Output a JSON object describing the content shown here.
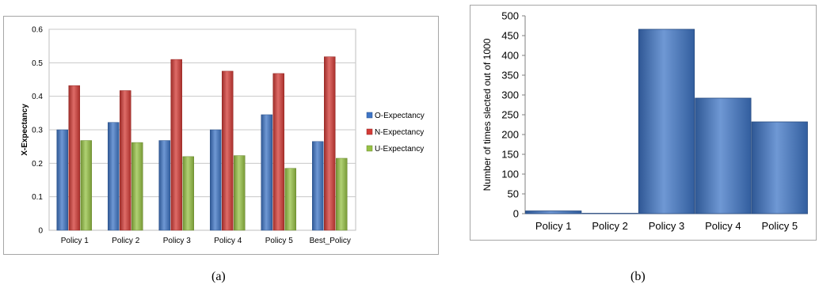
{
  "chart_data": [
    {
      "type": "bar",
      "ylabel": "X-Expectancy",
      "xlabel": "",
      "ylim": [
        0,
        0.6
      ],
      "yticks": [
        "0",
        "0.1",
        "0.2",
        "0.3",
        "0.4",
        "0.5",
        "0.6"
      ],
      "grid": true,
      "legend_position": "right",
      "categories": [
        "Policy 1",
        "Policy 2",
        "Policy 3",
        "Policy 4",
        "Policy 5",
        "Best_Policy"
      ],
      "series": [
        {
          "name": "O-Expectancy",
          "color": "#3f75c6",
          "values": [
            0.3,
            0.322,
            0.268,
            0.3,
            0.345,
            0.265
          ]
        },
        {
          "name": "N-Expectancy",
          "color": "#d33b36",
          "values": [
            0.432,
            0.417,
            0.51,
            0.475,
            0.468,
            0.518
          ]
        },
        {
          "name": "U-Expectancy",
          "color": "#96c144",
          "values": [
            0.268,
            0.262,
            0.22,
            0.223,
            0.185,
            0.215
          ]
        }
      ]
    },
    {
      "type": "bar",
      "ylabel": "Number of times slected out of 1000",
      "xlabel": "",
      "ylim": [
        0,
        500
      ],
      "yticks": [
        "0",
        "50",
        "100",
        "150",
        "200",
        "250",
        "300",
        "350",
        "400",
        "450",
        "500"
      ],
      "grid": false,
      "categories": [
        "Policy 1",
        "Policy 2",
        "Policy 3",
        "Policy 4",
        "Policy 5"
      ],
      "series": [
        {
          "color": "#3f75c6",
          "values": [
            7,
            1,
            466,
            292,
            232
          ]
        }
      ]
    }
  ],
  "captions": [
    "(a)",
    "(b)"
  ]
}
